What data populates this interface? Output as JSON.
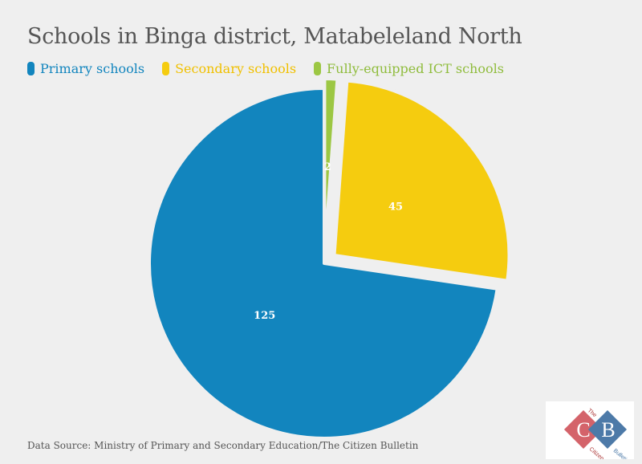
{
  "chart_data": {
    "type": "pie",
    "title": "Schools in Binga district, Matabeleland North",
    "categories": [
      "Primary schools",
      "Secondary schools",
      "Fully-equipped ICT schools"
    ],
    "values": [
      125,
      45,
      2
    ],
    "colors": [
      "#1285be",
      "#f5cc0f",
      "#9cc743"
    ],
    "legend_placement": "top-left"
  },
  "footer": {
    "source": "Data Source: Ministry of Primary and Secondary Education/The Citizen Bulletin"
  },
  "logo": {
    "top_text": "The",
    "middle_text": "Citizen",
    "bottom_text": "Bulletin",
    "letters": [
      "C",
      "B"
    ]
  }
}
